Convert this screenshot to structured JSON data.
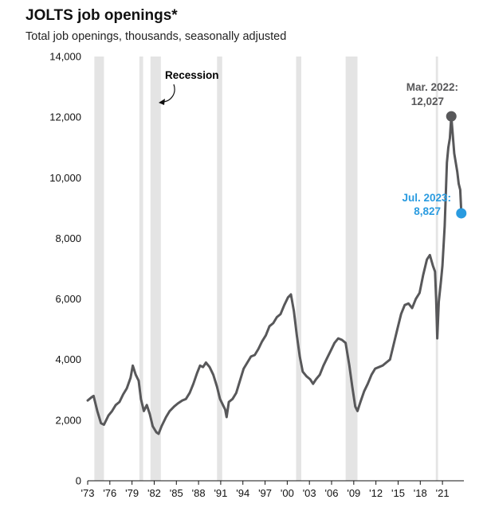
{
  "header": {
    "title": "JOLTS job openings*",
    "subtitle": "Total job openings, thousands, seasonally adjusted"
  },
  "colors": {
    "line": "#58585a",
    "recession": "#e4e4e4",
    "peak_marker": "#58585a",
    "latest_marker": "#2a9be0",
    "latest_text": "#2a9be0",
    "peak_text": "#58585a"
  },
  "chart_data": {
    "type": "line",
    "title": "JOLTS job openings*",
    "subtitle": "Total job openings, thousands, seasonally adjusted",
    "xlabel": "",
    "ylabel": "",
    "ylim": [
      0,
      14000
    ],
    "xlim": [
      1973.0,
      2023.9
    ],
    "yticks": [
      0,
      2000,
      4000,
      6000,
      8000,
      10000,
      12000,
      14000
    ],
    "ytick_labels": [
      "0",
      "2,000",
      "4,000",
      "6,000",
      "8,000",
      "10,000",
      "12,000",
      "14,000"
    ],
    "xticks": [
      1973,
      1976,
      1979,
      1982,
      1985,
      1988,
      1991,
      1994,
      1997,
      2000,
      2003,
      2006,
      2009,
      2012,
      2015,
      2018,
      2021
    ],
    "xtick_labels": [
      "'73",
      "'76",
      "'79",
      "'82",
      "'85",
      "'88",
      "'91",
      "'94",
      "'97",
      "'00",
      "'03",
      "'06",
      "'09",
      "'12",
      "'15",
      "'18",
      "'21"
    ],
    "grid": false,
    "recession_legend": "Recession",
    "recessions": [
      [
        1973.9,
        1975.2
      ],
      [
        1980.0,
        1980.5
      ],
      [
        1981.5,
        1982.9
      ],
      [
        1990.5,
        1991.2
      ],
      [
        2001.2,
        2001.9
      ],
      [
        2007.9,
        2009.5
      ],
      [
        2020.1,
        2020.4
      ]
    ],
    "series": [
      {
        "values": [
          [
            1973.0,
            2650
          ],
          [
            1973.5,
            2750
          ],
          [
            1973.8,
            2800
          ],
          [
            1974.3,
            2300
          ],
          [
            1974.8,
            1900
          ],
          [
            1975.2,
            1850
          ],
          [
            1975.8,
            2150
          ],
          [
            1976.3,
            2300
          ],
          [
            1976.8,
            2500
          ],
          [
            1977.3,
            2600
          ],
          [
            1977.8,
            2850
          ],
          [
            1978.3,
            3050
          ],
          [
            1978.8,
            3400
          ],
          [
            1979.1,
            3800
          ],
          [
            1979.5,
            3500
          ],
          [
            1979.9,
            3300
          ],
          [
            1980.2,
            2700
          ],
          [
            1980.6,
            2300
          ],
          [
            1981.0,
            2500
          ],
          [
            1981.4,
            2200
          ],
          [
            1981.8,
            1800
          ],
          [
            1982.3,
            1600
          ],
          [
            1982.6,
            1550
          ],
          [
            1983.0,
            1800
          ],
          [
            1983.6,
            2100
          ],
          [
            1984.1,
            2300
          ],
          [
            1984.7,
            2450
          ],
          [
            1985.2,
            2550
          ],
          [
            1985.8,
            2650
          ],
          [
            1986.3,
            2700
          ],
          [
            1986.8,
            2900
          ],
          [
            1987.3,
            3200
          ],
          [
            1987.8,
            3550
          ],
          [
            1988.2,
            3800
          ],
          [
            1988.6,
            3750
          ],
          [
            1989.0,
            3900
          ],
          [
            1989.5,
            3750
          ],
          [
            1990.0,
            3500
          ],
          [
            1990.5,
            3100
          ],
          [
            1990.9,
            2700
          ],
          [
            1991.3,
            2500
          ],
          [
            1991.6,
            2350
          ],
          [
            1991.8,
            2100
          ],
          [
            1992.1,
            2600
          ],
          [
            1992.6,
            2700
          ],
          [
            1993.1,
            2900
          ],
          [
            1993.6,
            3300
          ],
          [
            1994.1,
            3700
          ],
          [
            1994.6,
            3900
          ],
          [
            1995.1,
            4100
          ],
          [
            1995.6,
            4150
          ],
          [
            1996.1,
            4350
          ],
          [
            1996.6,
            4600
          ],
          [
            1997.1,
            4800
          ],
          [
            1997.6,
            5100
          ],
          [
            1998.1,
            5200
          ],
          [
            1998.6,
            5400
          ],
          [
            1999.1,
            5500
          ],
          [
            1999.6,
            5800
          ],
          [
            2000.1,
            6050
          ],
          [
            2000.5,
            6150
          ],
          [
            2000.9,
            5600
          ],
          [
            2001.3,
            4800
          ],
          [
            2001.7,
            4100
          ],
          [
            2002.1,
            3600
          ],
          [
            2002.6,
            3450
          ],
          [
            2003.1,
            3350
          ],
          [
            2003.5,
            3200
          ],
          [
            2003.9,
            3350
          ],
          [
            2004.4,
            3500
          ],
          [
            2004.9,
            3800
          ],
          [
            2005.4,
            4050
          ],
          [
            2005.9,
            4300
          ],
          [
            2006.4,
            4550
          ],
          [
            2006.9,
            4700
          ],
          [
            2007.4,
            4650
          ],
          [
            2007.9,
            4550
          ],
          [
            2008.4,
            3800
          ],
          [
            2008.8,
            3100
          ],
          [
            2009.2,
            2450
          ],
          [
            2009.5,
            2300
          ],
          [
            2009.9,
            2600
          ],
          [
            2010.4,
            2950
          ],
          [
            2010.9,
            3200
          ],
          [
            2011.4,
            3500
          ],
          [
            2011.9,
            3700
          ],
          [
            2012.4,
            3750
          ],
          [
            2012.9,
            3800
          ],
          [
            2013.4,
            3900
          ],
          [
            2013.9,
            4000
          ],
          [
            2014.4,
            4500
          ],
          [
            2014.9,
            5000
          ],
          [
            2015.4,
            5500
          ],
          [
            2015.9,
            5800
          ],
          [
            2016.4,
            5850
          ],
          [
            2016.9,
            5700
          ],
          [
            2017.4,
            6000
          ],
          [
            2017.9,
            6200
          ],
          [
            2018.4,
            6800
          ],
          [
            2018.9,
            7300
          ],
          [
            2019.3,
            7450
          ],
          [
            2019.7,
            7100
          ],
          [
            2020.0,
            6900
          ],
          [
            2020.15,
            6000
          ],
          [
            2020.3,
            4700
          ],
          [
            2020.5,
            5900
          ],
          [
            2020.8,
            6600
          ],
          [
            2021.0,
            7100
          ],
          [
            2021.3,
            8400
          ],
          [
            2021.6,
            10500
          ],
          [
            2021.8,
            11000
          ],
          [
            2022.0,
            11300
          ],
          [
            2022.2,
            12027
          ],
          [
            2022.4,
            11400
          ],
          [
            2022.6,
            10800
          ],
          [
            2022.8,
            10500
          ],
          [
            2023.0,
            10200
          ],
          [
            2023.2,
            9800
          ],
          [
            2023.4,
            9600
          ],
          [
            2023.55,
            8827
          ]
        ]
      }
    ],
    "annotations": [
      {
        "label": "Mar. 2022:",
        "value": "12,027",
        "x": 2022.2,
        "y": 12027
      },
      {
        "label": "Jul. 2023:",
        "value": "8,827",
        "x": 2023.55,
        "y": 8827
      }
    ]
  }
}
